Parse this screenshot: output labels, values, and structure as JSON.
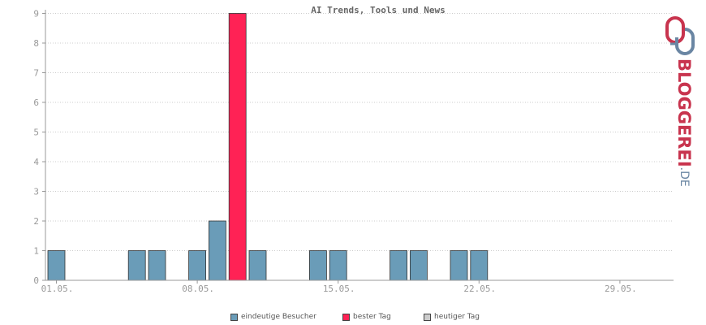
{
  "chart_data": {
    "type": "bar",
    "title": "AI Trends, Tools und News",
    "days": 31,
    "values": [
      1,
      0,
      0,
      0,
      1,
      1,
      0,
      1,
      2,
      9,
      1,
      0,
      0,
      1,
      1,
      0,
      0,
      1,
      1,
      0,
      1,
      1,
      0,
      0,
      0,
      0,
      0,
      0,
      0,
      0,
      0
    ],
    "highlight_day_index": 9,
    "x_tick_labels": [
      {
        "day_index": 0,
        "label": "01.05."
      },
      {
        "day_index": 7,
        "label": "08.05."
      },
      {
        "day_index": 14,
        "label": "15.05."
      },
      {
        "day_index": 21,
        "label": "22.05."
      },
      {
        "day_index": 28,
        "label": "29.05."
      }
    ],
    "y_ticks": [
      0,
      1,
      2,
      3,
      4,
      5,
      6,
      7,
      8,
      9
    ],
    "ylim": [
      0,
      9
    ],
    "grid": true,
    "legend_position": "bottom"
  },
  "legend": {
    "items": [
      {
        "label": "eindeutige Besucher",
        "color": "#6a9cb8"
      },
      {
        "label": "bester Tag",
        "color": "#ff2255"
      },
      {
        "label": "heutiger Tag",
        "color": "#cccccc"
      }
    ]
  },
  "logo": {
    "text": "BLOGGEREI",
    "suffix": ".DE",
    "icon": "bloggerei-logo-icon"
  },
  "colors": {
    "bar": "#6a9cb8",
    "best": "#ff2255",
    "grid": "#cccccc",
    "axis": "#999999"
  }
}
